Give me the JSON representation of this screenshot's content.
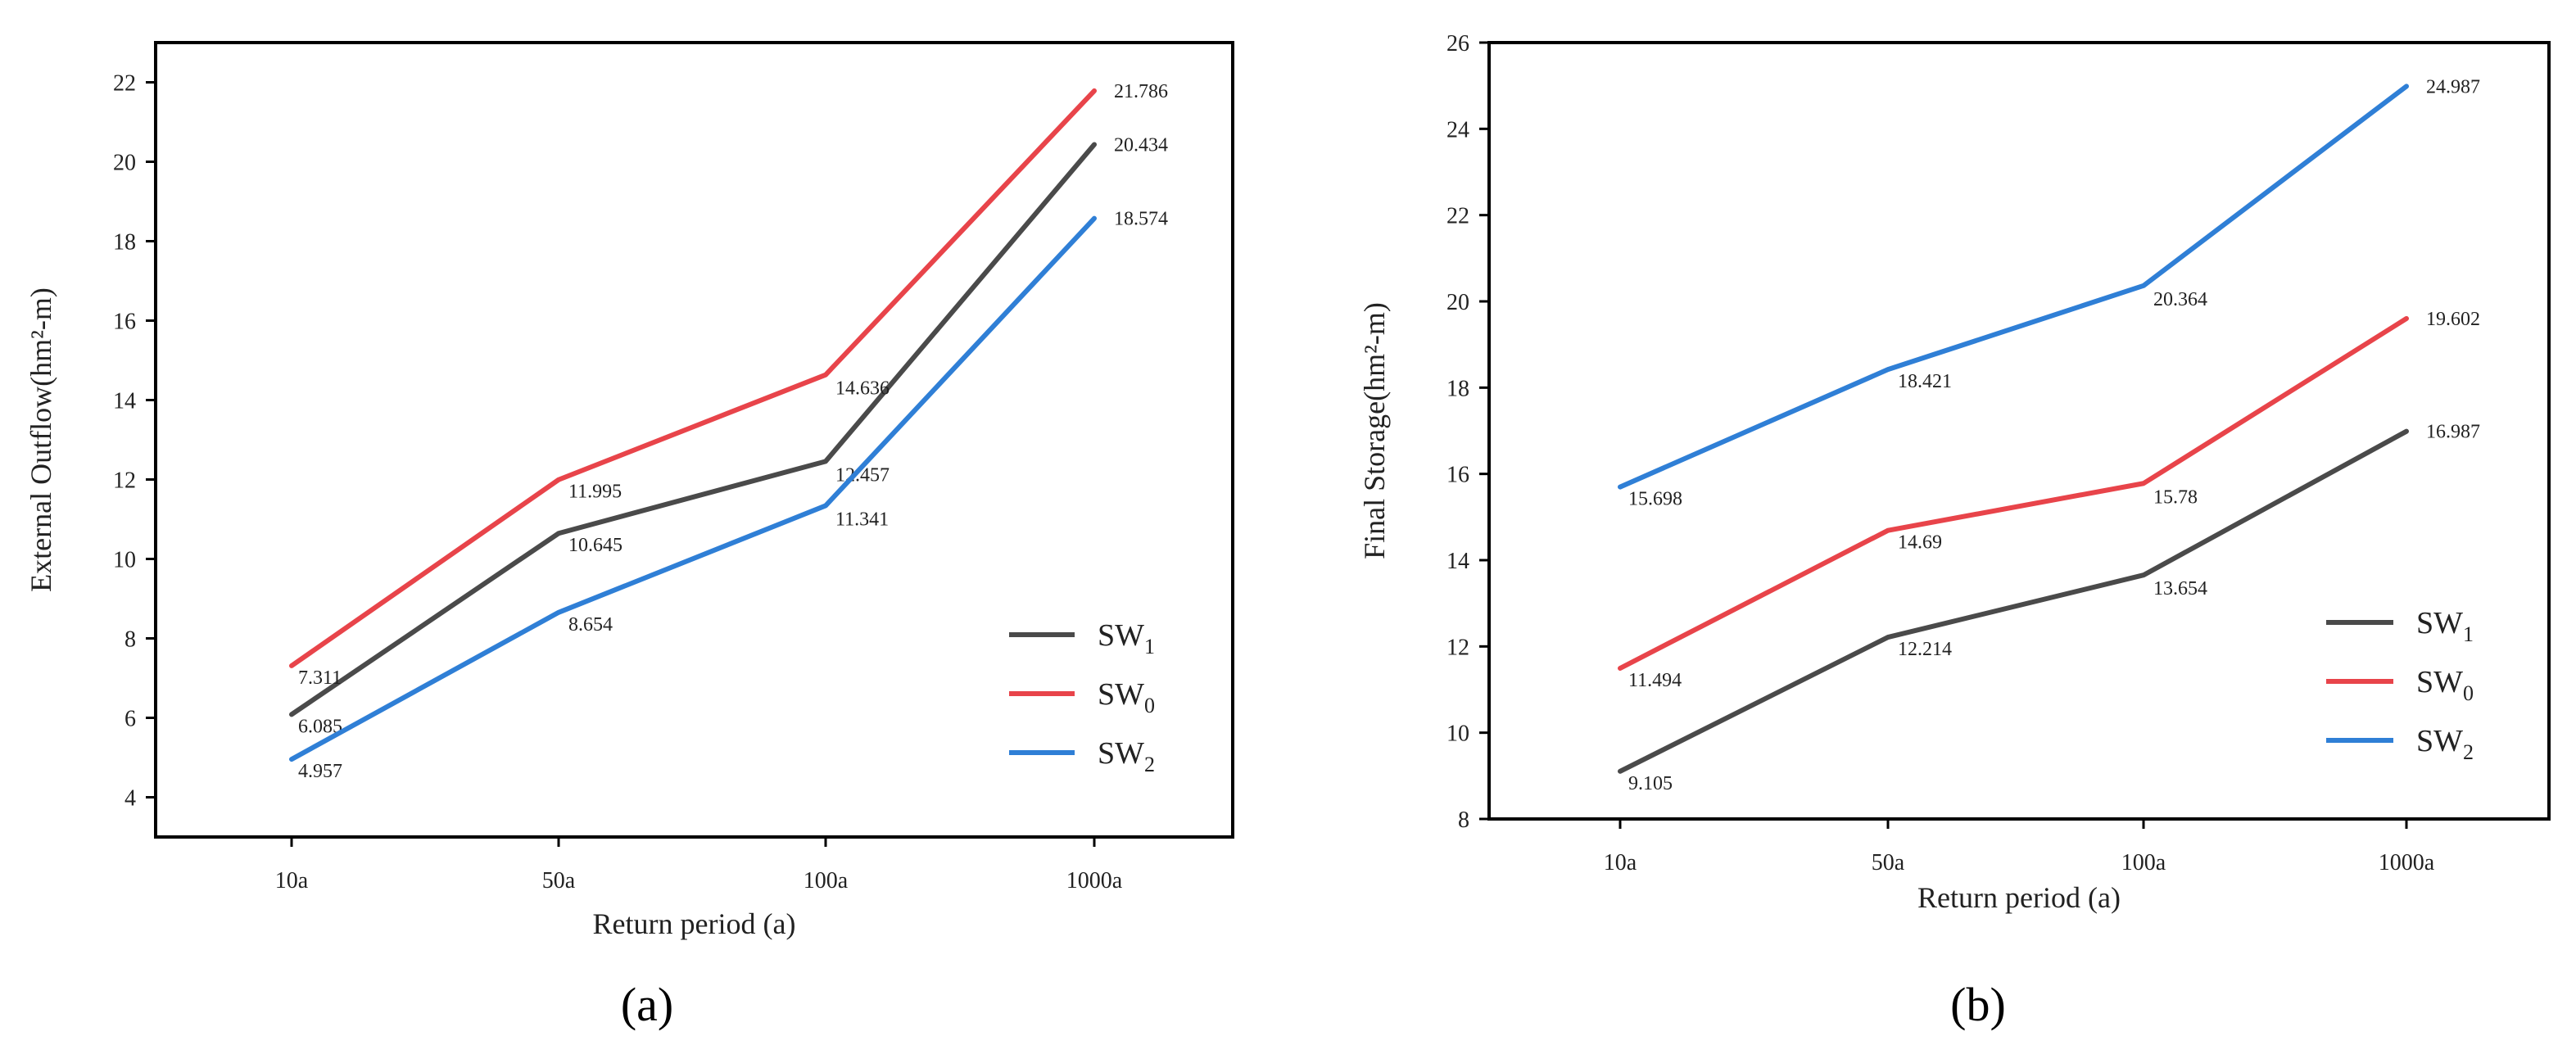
{
  "chart_data": [
    {
      "type": "line",
      "panel_label": "(a)",
      "categories": [
        "10a",
        "50a",
        "100a",
        "1000a"
      ],
      "xlabel": "Return period (a)",
      "ylabel": "External Outflow(hm²-m)",
      "ylim": [
        3,
        23
      ],
      "yticks": [
        4,
        6,
        8,
        10,
        12,
        14,
        16,
        18,
        20,
        22
      ],
      "legend_position": "lower-right",
      "series": [
        {
          "name": "SW",
          "subscript": "1",
          "color": "#4a4a4a",
          "values": [
            6.085,
            10.645,
            12.457,
            20.434
          ],
          "labels": [
            "6.085",
            "10.645",
            "12.457",
            "20.434"
          ]
        },
        {
          "name": "SW",
          "subscript": "0",
          "color": "#e8444a",
          "values": [
            7.311,
            11.995,
            14.636,
            21.786
          ],
          "labels": [
            "7.311",
            "11.995",
            "14.636",
            "21.786"
          ]
        },
        {
          "name": "SW",
          "subscript": "2",
          "color": "#2f7fd6",
          "values": [
            4.957,
            8.654,
            11.341,
            18.574
          ],
          "labels": [
            "4.957",
            "8.654",
            "11.341",
            "18.574"
          ]
        }
      ]
    },
    {
      "type": "line",
      "panel_label": "(b)",
      "categories": [
        "10a",
        "50a",
        "100a",
        "1000a"
      ],
      "xlabel": "Return period (a)",
      "ylabel": "Final Storage(hm²-m)",
      "ylim": [
        8,
        26
      ],
      "yticks": [
        8,
        10,
        12,
        14,
        16,
        18,
        20,
        22,
        24,
        26
      ],
      "legend_position": "lower-right",
      "series": [
        {
          "name": "SW",
          "subscript": "1",
          "color": "#4a4a4a",
          "values": [
            9.105,
            12.214,
            13.654,
            16.987
          ],
          "labels": [
            "9.105",
            "12.214",
            "13.654",
            "16.987"
          ]
        },
        {
          "name": "SW",
          "subscript": "0",
          "color": "#e8444a",
          "values": [
            11.494,
            14.69,
            15.78,
            19.602
          ],
          "labels": [
            "11.494",
            "14.69",
            "15.78",
            "19.602"
          ]
        },
        {
          "name": "SW",
          "subscript": "2",
          "color": "#2f7fd6",
          "values": [
            15.698,
            18.421,
            20.364,
            24.987
          ],
          "labels": [
            "15.698",
            "18.421",
            "20.364",
            "24.987"
          ]
        }
      ]
    }
  ]
}
